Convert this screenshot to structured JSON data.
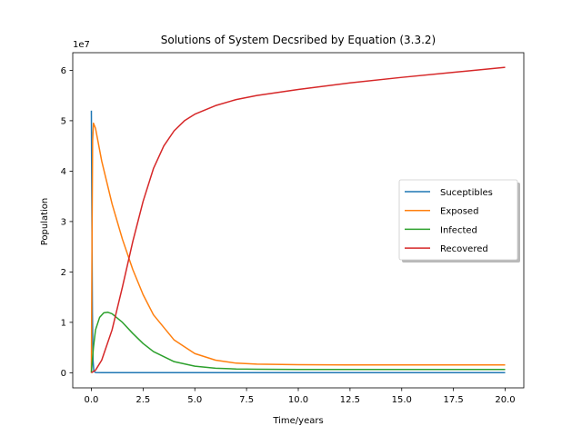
{
  "chart_data": {
    "type": "line",
    "title": "Solutions of System Decsribed by Equation (3.3.2)",
    "xlabel": "Time/years",
    "ylabel": "Population",
    "y_offset_label": "1e7",
    "xlim": [
      -0.9,
      20.9
    ],
    "ylim": [
      -0.3,
      6.35
    ],
    "xticks": [
      0.0,
      2.5,
      5.0,
      7.5,
      10.0,
      12.5,
      15.0,
      17.5,
      20.0
    ],
    "xtick_labels": [
      "0.0",
      "2.5",
      "5.0",
      "7.5",
      "10.0",
      "12.5",
      "15.0",
      "17.5",
      "20.0"
    ],
    "yticks": [
      0,
      1,
      2,
      3,
      4,
      5,
      6
    ],
    "ytick_labels": [
      "0",
      "1",
      "2",
      "3",
      "4",
      "5",
      "6"
    ],
    "grid": false,
    "legend_position": "right",
    "series": [
      {
        "name": "Suceptibles",
        "color": "#1f77b4",
        "x": [
          0,
          0.02,
          0.05,
          0.08,
          0.12,
          0.2,
          0.5,
          1,
          2,
          5,
          10,
          15,
          20
        ],
        "y": [
          5.2,
          3.5,
          1.2,
          0.25,
          0.03,
          0.005,
          0.002,
          0.0015,
          0.0012,
          0.001,
          0.001,
          0.001,
          0.001
        ]
      },
      {
        "name": "Exposed",
        "color": "#ff7f0e",
        "x": [
          0,
          0.03,
          0.06,
          0.1,
          0.2,
          0.5,
          1,
          1.5,
          2,
          2.5,
          3,
          4,
          5,
          6,
          7,
          8,
          10,
          12.5,
          15,
          17.5,
          20
        ],
        "y": [
          0,
          2.5,
          4.6,
          4.95,
          4.85,
          4.2,
          3.35,
          2.65,
          2.05,
          1.55,
          1.15,
          0.65,
          0.38,
          0.25,
          0.19,
          0.17,
          0.16,
          0.155,
          0.155,
          0.155,
          0.155
        ]
      },
      {
        "name": "Infected",
        "color": "#2ca02c",
        "x": [
          0,
          0.05,
          0.1,
          0.2,
          0.4,
          0.6,
          0.8,
          1,
          1.5,
          2,
          2.5,
          3,
          4,
          5,
          6,
          7,
          8,
          10,
          15,
          20
        ],
        "y": [
          0,
          0.25,
          0.5,
          0.85,
          1.1,
          1.19,
          1.2,
          1.17,
          1.0,
          0.78,
          0.58,
          0.42,
          0.22,
          0.13,
          0.09,
          0.075,
          0.07,
          0.065,
          0.065,
          0.065
        ]
      },
      {
        "name": "Recovered",
        "color": "#d62728",
        "x": [
          0,
          0.2,
          0.5,
          1,
          1.5,
          2,
          2.5,
          3,
          3.5,
          4,
          4.5,
          5,
          6,
          7,
          8,
          10,
          12.5,
          15,
          17.5,
          20
        ],
        "y": [
          0,
          0.05,
          0.25,
          0.85,
          1.7,
          2.6,
          3.4,
          4.05,
          4.5,
          4.8,
          5.0,
          5.13,
          5.3,
          5.42,
          5.5,
          5.62,
          5.75,
          5.86,
          5.96,
          6.06
        ]
      }
    ]
  }
}
